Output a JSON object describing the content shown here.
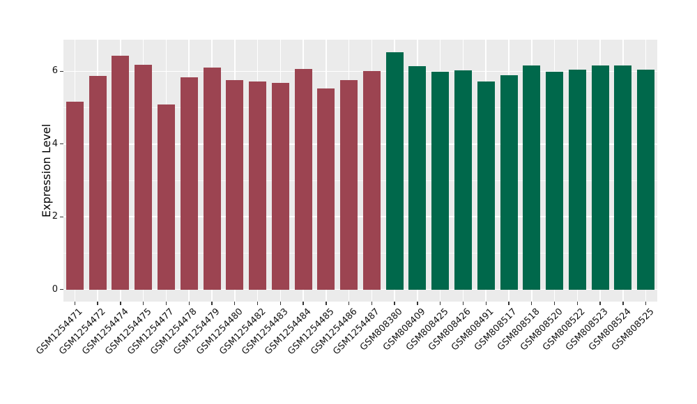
{
  "chart_data": {
    "type": "bar",
    "title": "",
    "xlabel": "",
    "ylabel": "Expression Level",
    "categories": [
      "GSM1254471",
      "GSM1254472",
      "GSM1254474",
      "GSM1254475",
      "GSM1254477",
      "GSM1254478",
      "GSM1254479",
      "GSM1254480",
      "GSM1254482",
      "GSM1254483",
      "GSM1254484",
      "GSM1254485",
      "GSM1254486",
      "GSM1254487",
      "GSM808380",
      "GSM808409",
      "GSM808425",
      "GSM808426",
      "GSM808491",
      "GSM808517",
      "GSM808518",
      "GSM808520",
      "GSM808522",
      "GSM808523",
      "GSM808524",
      "GSM808525"
    ],
    "values": [
      5.17,
      5.87,
      6.43,
      6.18,
      5.09,
      5.84,
      6.11,
      5.75,
      5.72,
      5.69,
      6.06,
      5.52,
      5.76,
      6.01,
      6.53,
      6.14,
      5.98,
      6.02,
      5.72,
      5.9,
      6.17,
      5.99,
      6.04,
      6.17,
      6.17,
      6.04
    ],
    "colors": [
      "#9C4451",
      "#9C4451",
      "#9C4451",
      "#9C4451",
      "#9C4451",
      "#9C4451",
      "#9C4451",
      "#9C4451",
      "#9C4451",
      "#9C4451",
      "#9C4451",
      "#9C4451",
      "#9C4451",
      "#9C4451",
      "#00684B",
      "#00684B",
      "#00684B",
      "#00684B",
      "#00684B",
      "#00684B",
      "#00684B",
      "#00684B",
      "#00684B",
      "#00684B",
      "#00684B",
      "#00684B"
    ],
    "group_palette": {
      "maroon": "#9C4451",
      "green": "#00684B"
    },
    "yticks": [
      0,
      2,
      4,
      6
    ],
    "yticks_minor": [
      1,
      3,
      5
    ],
    "ylim": [
      0,
      6.86
    ],
    "grid": "on",
    "panel_background": "#EBEBEB",
    "grid_color": "#FFFFFF",
    "legend_position": "none",
    "x_label_rotation_deg": 45
  }
}
